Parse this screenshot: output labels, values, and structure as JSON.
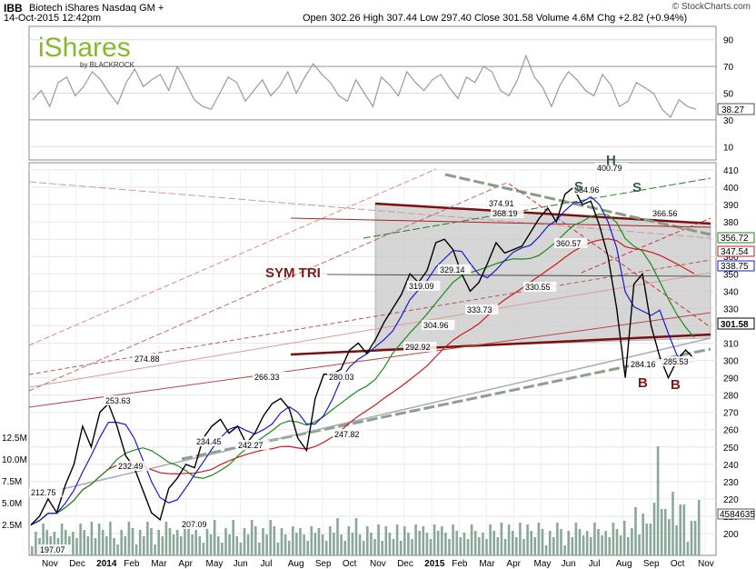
{
  "header": {
    "symbol": "IBB",
    "description": "Biotech iShares  Nasdaq GM +",
    "datetime": "14-Oct-2015 12:42pm",
    "ohlc": "Open 302.26  High 307.44  Low 297.40  Close 301.58  Volume 4.6M  Chg +2.82 (+0.94%)",
    "credit": "© StockCharts.com"
  },
  "logo": {
    "brand": "iShares",
    "by": "by BLACKROCK"
  },
  "chart_data": [
    {
      "type": "line",
      "panel": "indicator",
      "ylim": [
        0,
        100
      ],
      "y_ticks": [
        10,
        30,
        50,
        70,
        90
      ],
      "last_value_label": "38.27",
      "values": [
        45,
        52,
        40,
        58,
        62,
        48,
        55,
        66,
        60,
        50,
        42,
        58,
        68,
        55,
        60,
        64,
        52,
        70,
        58,
        45,
        40,
        38,
        50,
        62,
        58,
        44,
        52,
        60,
        48,
        55,
        66,
        50,
        62,
        72,
        64,
        58,
        48,
        44,
        60,
        50,
        40,
        62,
        56,
        48,
        66,
        58,
        52,
        60,
        64,
        54,
        46,
        62,
        58,
        70,
        66,
        52,
        48,
        60,
        78,
        62,
        54,
        40,
        56,
        66,
        60,
        52,
        48,
        64,
        56,
        40,
        44,
        58,
        54,
        50,
        38,
        32,
        45,
        40,
        38
      ]
    },
    {
      "type": "line",
      "panel": "price",
      "x_categories": [
        "Nov",
        "Dec",
        "2014",
        "Feb",
        "Mar",
        "Apr",
        "May",
        "Jun",
        "Jul",
        "Aug",
        "Sep",
        "Oct",
        "Nov",
        "Dec",
        "2015",
        "Feb",
        "Mar",
        "Apr",
        "May",
        "Jun",
        "Jul",
        "Aug",
        "Sep",
        "Oct",
        "Nov"
      ],
      "y_ticks": [
        200,
        210,
        220,
        230,
        240,
        250,
        260,
        270,
        280,
        290,
        300,
        310,
        320,
        330,
        340,
        350,
        360,
        370,
        380,
        390,
        400,
        410
      ],
      "volume_ticks": [
        "12.5M",
        "10.0M",
        "7.5M",
        "5.0M",
        "2.5M"
      ],
      "price_path": [
        [
          0,
          205
        ],
        [
          1,
          210
        ],
        [
          2,
          220
        ],
        [
          3,
          212
        ],
        [
          4,
          228
        ],
        [
          5,
          240
        ],
        [
          6,
          262
        ],
        [
          7,
          250
        ],
        [
          8,
          270
        ],
        [
          9,
          275
        ],
        [
          10,
          262
        ],
        [
          11,
          245
        ],
        [
          12,
          238
        ],
        [
          13,
          225
        ],
        [
          14,
          212
        ],
        [
          15,
          208
        ],
        [
          16,
          226
        ],
        [
          17,
          232
        ],
        [
          18,
          240
        ],
        [
          19,
          238
        ],
        [
          20,
          255
        ],
        [
          21,
          262
        ],
        [
          22,
          266
        ],
        [
          23,
          258
        ],
        [
          24,
          262
        ],
        [
          25,
          252
        ],
        [
          26,
          258
        ],
        [
          27,
          268
        ],
        [
          28,
          275
        ],
        [
          29,
          278
        ],
        [
          30,
          272
        ],
        [
          31,
          255
        ],
        [
          32,
          248
        ],
        [
          33,
          278
        ],
        [
          34,
          292
        ],
        [
          35,
          292
        ],
        [
          36,
          295
        ],
        [
          37,
          306
        ],
        [
          38,
          310
        ],
        [
          39,
          304
        ],
        [
          40,
          312
        ],
        [
          41,
          322
        ],
        [
          42,
          330
        ],
        [
          43,
          338
        ],
        [
          44,
          350
        ],
        [
          45,
          345
        ],
        [
          46,
          352
        ],
        [
          47,
          368
        ],
        [
          48,
          370
        ],
        [
          49,
          364
        ],
        [
          50,
          350
        ],
        [
          51,
          340
        ],
        [
          52,
          345
        ],
        [
          53,
          356
        ],
        [
          54,
          368
        ],
        [
          55,
          362
        ],
        [
          56,
          364
        ],
        [
          57,
          366
        ],
        [
          58,
          374
        ],
        [
          59,
          382
        ],
        [
          60,
          388
        ],
        [
          61,
          380
        ],
        [
          62,
          396
        ],
        [
          63,
          400
        ],
        [
          64,
          390
        ],
        [
          65,
          392
        ],
        [
          66,
          378
        ],
        [
          67,
          360
        ],
        [
          68,
          330
        ],
        [
          69,
          290
        ],
        [
          70,
          344
        ],
        [
          71,
          350
        ],
        [
          72,
          320
        ],
        [
          73,
          302
        ],
        [
          74,
          290
        ],
        [
          75,
          300
        ],
        [
          76,
          306
        ],
        [
          77,
          301
        ]
      ],
      "ma_short_label": "338.75",
      "ma_mid_label": "356.72",
      "ma_long_label": "347.54",
      "last_price_label": "301.58",
      "volume_last_label": "4584635",
      "price_labels": [
        "197.07",
        "212.75",
        "232.49",
        "253.63",
        "274.88",
        "234.45",
        "207.09",
        "266.33",
        "242.27",
        "280.03",
        "247.82",
        "292.92",
        "319.09",
        "304.96",
        "329.14",
        "333.73",
        "374.91",
        "368.19",
        "330.55",
        "360.57",
        "384.96",
        "400.79",
        "366.56",
        "284.16",
        "285.53"
      ],
      "annotations": [
        "SYM TRI",
        "S",
        "H",
        "S",
        "B",
        "B"
      ]
    }
  ],
  "colors": {
    "ma_short": "#1a1acc",
    "ma_mid": "#1a8a1a",
    "ma_long": "#cc1a1a",
    "trend_line": "#7b1010",
    "volume": "#8aa89a",
    "triangle_fill": "#c8c8c8",
    "annotation": "#7b1a1a",
    "head_shoulders": "#3a5a4a"
  }
}
